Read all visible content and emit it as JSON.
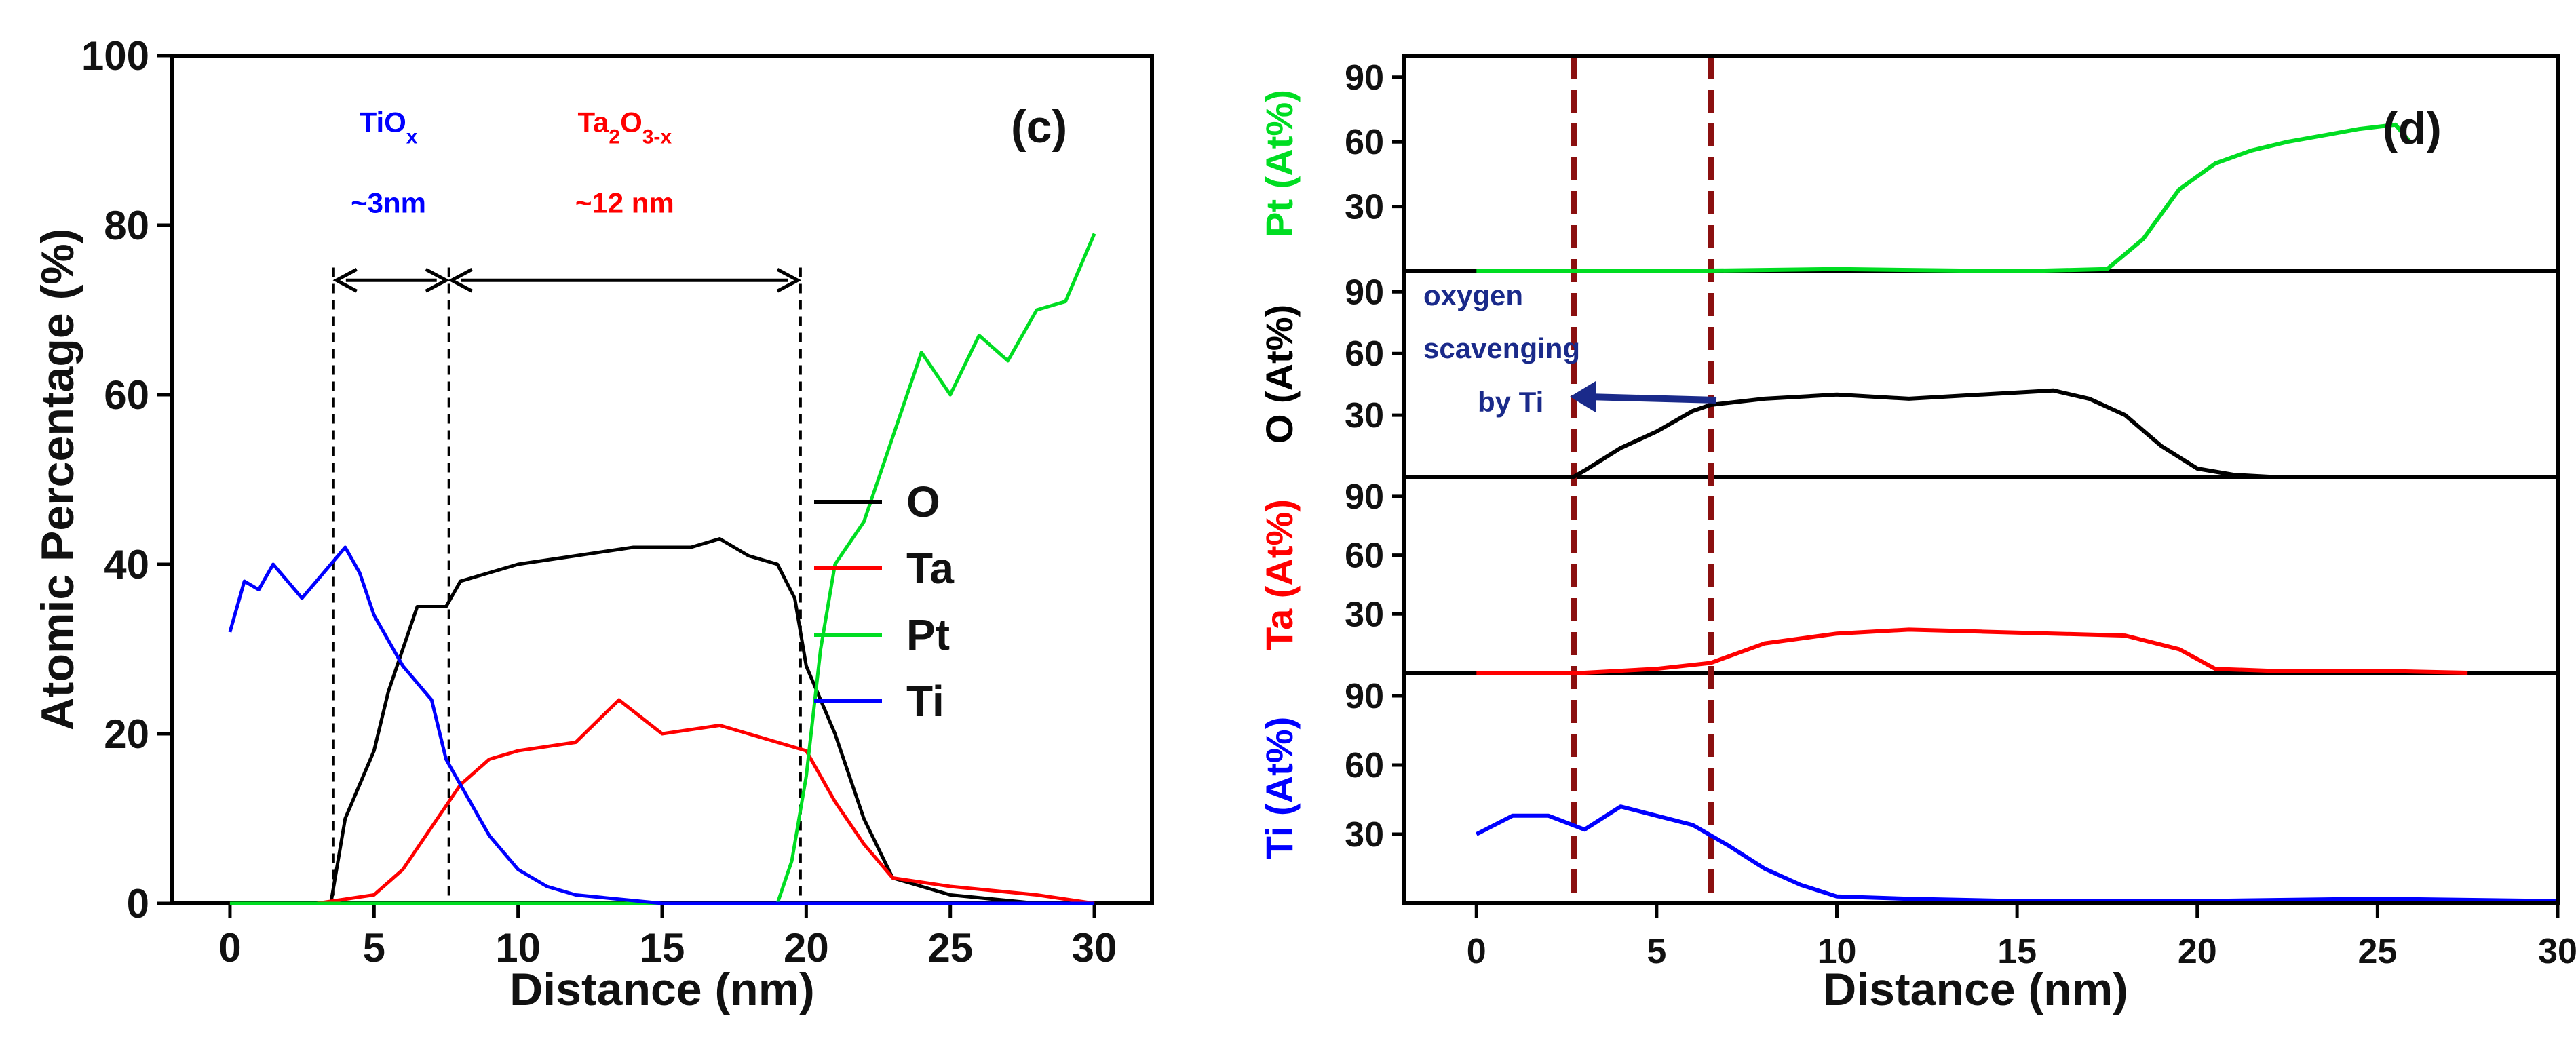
{
  "chart_data": [
    {
      "type": "line",
      "panel_label": "(c)",
      "xlabel": "Distance (nm)",
      "ylabel": "Atomic Percentage (%)",
      "xlim": [
        -2,
        32
      ],
      "ylim": [
        0,
        100
      ],
      "xticks": [
        0,
        5,
        10,
        15,
        20,
        25,
        30
      ],
      "yticks": [
        0,
        20,
        40,
        60,
        80,
        100
      ],
      "legend_position": "center-right",
      "series": [
        {
          "name": "O",
          "color": "#000000",
          "x": [
            0,
            2,
            3.5,
            4,
            5,
            5.5,
            6.5,
            7.5,
            8,
            9,
            10,
            12,
            14,
            16,
            17,
            18,
            19,
            19.6,
            20,
            21,
            22,
            23,
            25,
            28,
            30
          ],
          "y": [
            0,
            0,
            0,
            10,
            18,
            25,
            35,
            35,
            38,
            39,
            40,
            41,
            42,
            42,
            43,
            41,
            40,
            36,
            28,
            20,
            10,
            3,
            1,
            0,
            0
          ]
        },
        {
          "name": "Ta",
          "color": "#ff0000",
          "x": [
            0,
            3,
            5,
            6,
            7,
            8,
            9,
            10,
            12,
            13.5,
            15,
            17,
            19,
            20,
            21,
            22,
            23,
            25,
            28,
            30
          ],
          "y": [
            0,
            0,
            1,
            4,
            9,
            14,
            17,
            18,
            19,
            24,
            20,
            21,
            19,
            18,
            12,
            7,
            3,
            2,
            1,
            0
          ]
        },
        {
          "name": "Pt",
          "color": "#00dd22",
          "x": [
            0,
            10,
            19,
            19.5,
            20,
            20.5,
            21,
            22,
            23,
            24,
            25,
            26,
            27,
            28,
            29,
            30
          ],
          "y": [
            0,
            0,
            0,
            5,
            15,
            30,
            40,
            45,
            55,
            65,
            60,
            67,
            64,
            70,
            71,
            79
          ]
        },
        {
          "name": "Ti",
          "color": "#0000ff",
          "x": [
            0,
            0.5,
            1,
            1.5,
            2,
            2.5,
            3,
            3.5,
            4,
            4.5,
            5,
            6,
            7,
            7.5,
            8,
            9,
            10,
            11,
            12,
            15,
            20,
            25,
            30
          ],
          "y": [
            32,
            38,
            37,
            40,
            38,
            36,
            38,
            40,
            42,
            39,
            34,
            28,
            24,
            17,
            14,
            8,
            4,
            2,
            1,
            0,
            0,
            0,
            0
          ]
        }
      ],
      "vlines": [
        3.6,
        7.6,
        19.8
      ],
      "annotations": [
        {
          "name": "tiox",
          "x": 5.5,
          "y": 91,
          "label": "TiO",
          "sub": "x",
          "color": "#0000ff"
        },
        {
          "name": "tiox-width",
          "x": 5.5,
          "y": 81.5,
          "label": "~3nm",
          "color": "#0000ff"
        },
        {
          "name": "ta2o3",
          "x": 13.7,
          "y": 91,
          "label": "Ta",
          "sub1": "2",
          "mid": "O",
          "sub2": "3-x",
          "color": "#ff0000"
        },
        {
          "name": "ta2o3-width",
          "x": 13.7,
          "y": 81.5,
          "label": "~12 nm",
          "color": "#ff0000"
        }
      ]
    },
    {
      "type": "line",
      "panel_label": "(d)",
      "xlabel": "Distance (nm)",
      "xlim": [
        -2,
        30
      ],
      "xticks": [
        0,
        5,
        10,
        15,
        20,
        25,
        30
      ],
      "stacked_panels": [
        {
          "name": "Pt",
          "ylabel": "Pt (At%)",
          "color": "#00dd22",
          "ylim": [
            0,
            100
          ],
          "yticks": [
            30,
            60,
            90
          ],
          "x": [
            0,
            5,
            10,
            15,
            17.5,
            18.5,
            19.5,
            20.5,
            21.5,
            22.5,
            23.5,
            24.5,
            25.5,
            25.9
          ],
          "y": [
            0,
            0,
            1,
            0,
            1,
            15,
            38,
            50,
            56,
            60,
            63,
            66,
            68,
            60
          ]
        },
        {
          "name": "O",
          "ylabel": "O (At%)",
          "color": "#000000",
          "ylim": [
            0,
            100
          ],
          "yticks": [
            30,
            60,
            90
          ],
          "x": [
            1.3,
            2.7,
            3,
            4,
            5,
            6,
            6.5,
            8,
            10,
            12,
            14,
            16,
            17,
            18,
            19,
            20,
            21,
            22
          ],
          "y": [
            0,
            0,
            3,
            14,
            22,
            32,
            35,
            38,
            40,
            38,
            40,
            42,
            38,
            30,
            15,
            4,
            1,
            0
          ]
        },
        {
          "name": "Ta",
          "ylabel": "Ta (At%)",
          "color": "#ff0000",
          "ylim": [
            0,
            100
          ],
          "yticks": [
            30,
            60,
            90
          ],
          "x": [
            0,
            3,
            5,
            6.5,
            8,
            10,
            12,
            14,
            16,
            18,
            19.5,
            20.5,
            22,
            25,
            27.5
          ],
          "y": [
            0,
            0,
            2,
            5,
            15,
            20,
            22,
            21,
            20,
            19,
            12,
            2,
            1,
            1,
            0
          ]
        },
        {
          "name": "Ti",
          "ylabel": "Ti (At%)",
          "color": "#0000ff",
          "ylim": [
            0,
            100
          ],
          "yticks": [
            30,
            60,
            90
          ],
          "x": [
            0,
            1,
            2,
            3,
            4,
            5,
            6,
            7,
            8,
            9,
            10,
            12,
            15,
            20,
            25,
            30
          ],
          "y": [
            30,
            38,
            38,
            32,
            42,
            38,
            34,
            25,
            15,
            8,
            3,
            2,
            1,
            1,
            2,
            1
          ]
        }
      ],
      "vlines": [
        2.7,
        6.5
      ],
      "annotation": {
        "lines": [
          "oxygen",
          "scavenging",
          "by Ti"
        ],
        "color": "#1a2a8a"
      }
    }
  ],
  "legend": [
    "O",
    "Ta",
    "Pt",
    "Ti"
  ]
}
